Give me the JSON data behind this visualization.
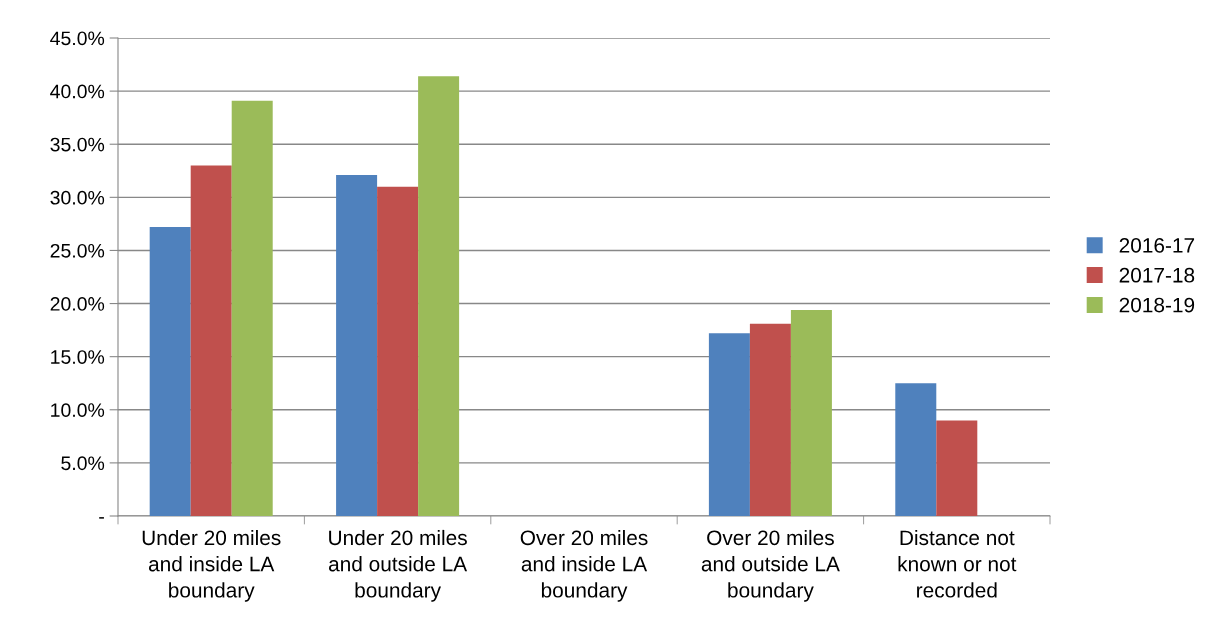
{
  "chart_data": {
    "type": "bar",
    "categories": [
      "Under 20 miles and inside LA boundary",
      "Under 20 miles and outside LA boundary",
      "Over 20 miles and inside LA boundary",
      "Over 20 miles and outside LA boundary",
      "Distance not known or not recorded"
    ],
    "series": [
      {
        "name": "2016-17",
        "color": "#4f81bd",
        "values": [
          27.2,
          32.1,
          null,
          17.2,
          12.5
        ]
      },
      {
        "name": "2017-18",
        "color": "#c0504d",
        "values": [
          33.0,
          31.0,
          null,
          18.1,
          9.0
        ]
      },
      {
        "name": "2018-19",
        "color": "#9bbb59",
        "values": [
          39.1,
          41.4,
          null,
          19.4,
          null
        ]
      }
    ],
    "ylim": [
      0,
      45
    ],
    "yticks": [
      {
        "value": 0,
        "label": "-"
      },
      {
        "value": 5,
        "label": "5.0%"
      },
      {
        "value": 10,
        "label": "10.0%"
      },
      {
        "value": 15,
        "label": "15.0%"
      },
      {
        "value": 20,
        "label": "20.0%"
      },
      {
        "value": 25,
        "label": "25.0%"
      },
      {
        "value": 30,
        "label": "30.0%"
      },
      {
        "value": 35,
        "label": "35.0%"
      },
      {
        "value": 40,
        "label": "40.0%"
      },
      {
        "value": 45,
        "label": "45.0%"
      }
    ],
    "grid": "y",
    "legend": "right"
  }
}
